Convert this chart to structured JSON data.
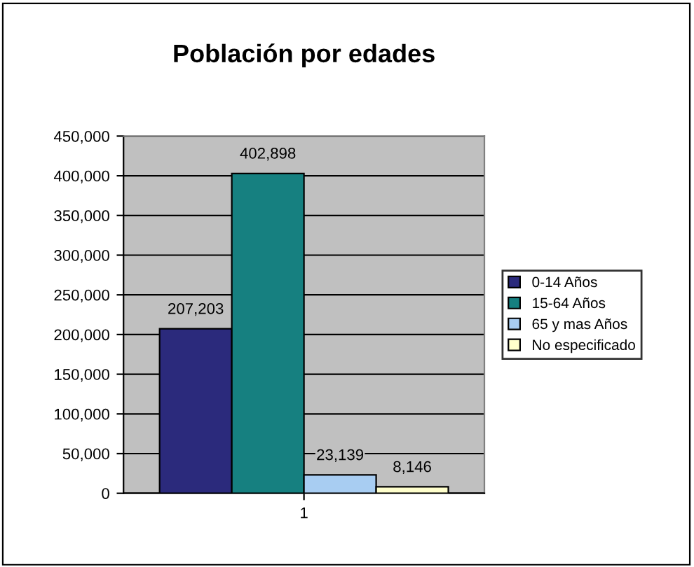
{
  "chart_data": {
    "type": "bar",
    "title": "Población por edades",
    "categories": [
      "1"
    ],
    "series": [
      {
        "name": "0-14 Años",
        "color": "#2b2a7c",
        "values": [
          207203
        ],
        "value_labels": [
          "207,203"
        ]
      },
      {
        "name": "15-64 Años",
        "color": "#168080",
        "values": [
          402898
        ],
        "value_labels": [
          "402,898"
        ]
      },
      {
        "name": "65 y mas Años",
        "color": "#a8cdf2",
        "values": [
          23139
        ],
        "value_labels": [
          "23,139"
        ]
      },
      {
        "name": "No especificado",
        "color": "#ffffcc",
        "values": [
          8146
        ],
        "value_labels": [
          "8,146"
        ]
      }
    ],
    "ylim": [
      0,
      450000
    ],
    "yticks": [
      {
        "value": 0,
        "label": "0"
      },
      {
        "value": 50000,
        "label": "50,000"
      },
      {
        "value": 100000,
        "label": "100,000"
      },
      {
        "value": 150000,
        "label": "150,000"
      },
      {
        "value": 200000,
        "label": "200,000"
      },
      {
        "value": 250000,
        "label": "250,000"
      },
      {
        "value": 300000,
        "label": "300,000"
      },
      {
        "value": 350000,
        "label": "350,000"
      },
      {
        "value": 400000,
        "label": "400,000"
      },
      {
        "value": 450000,
        "label": "450,000"
      }
    ],
    "grid": "y",
    "legend": "right"
  }
}
